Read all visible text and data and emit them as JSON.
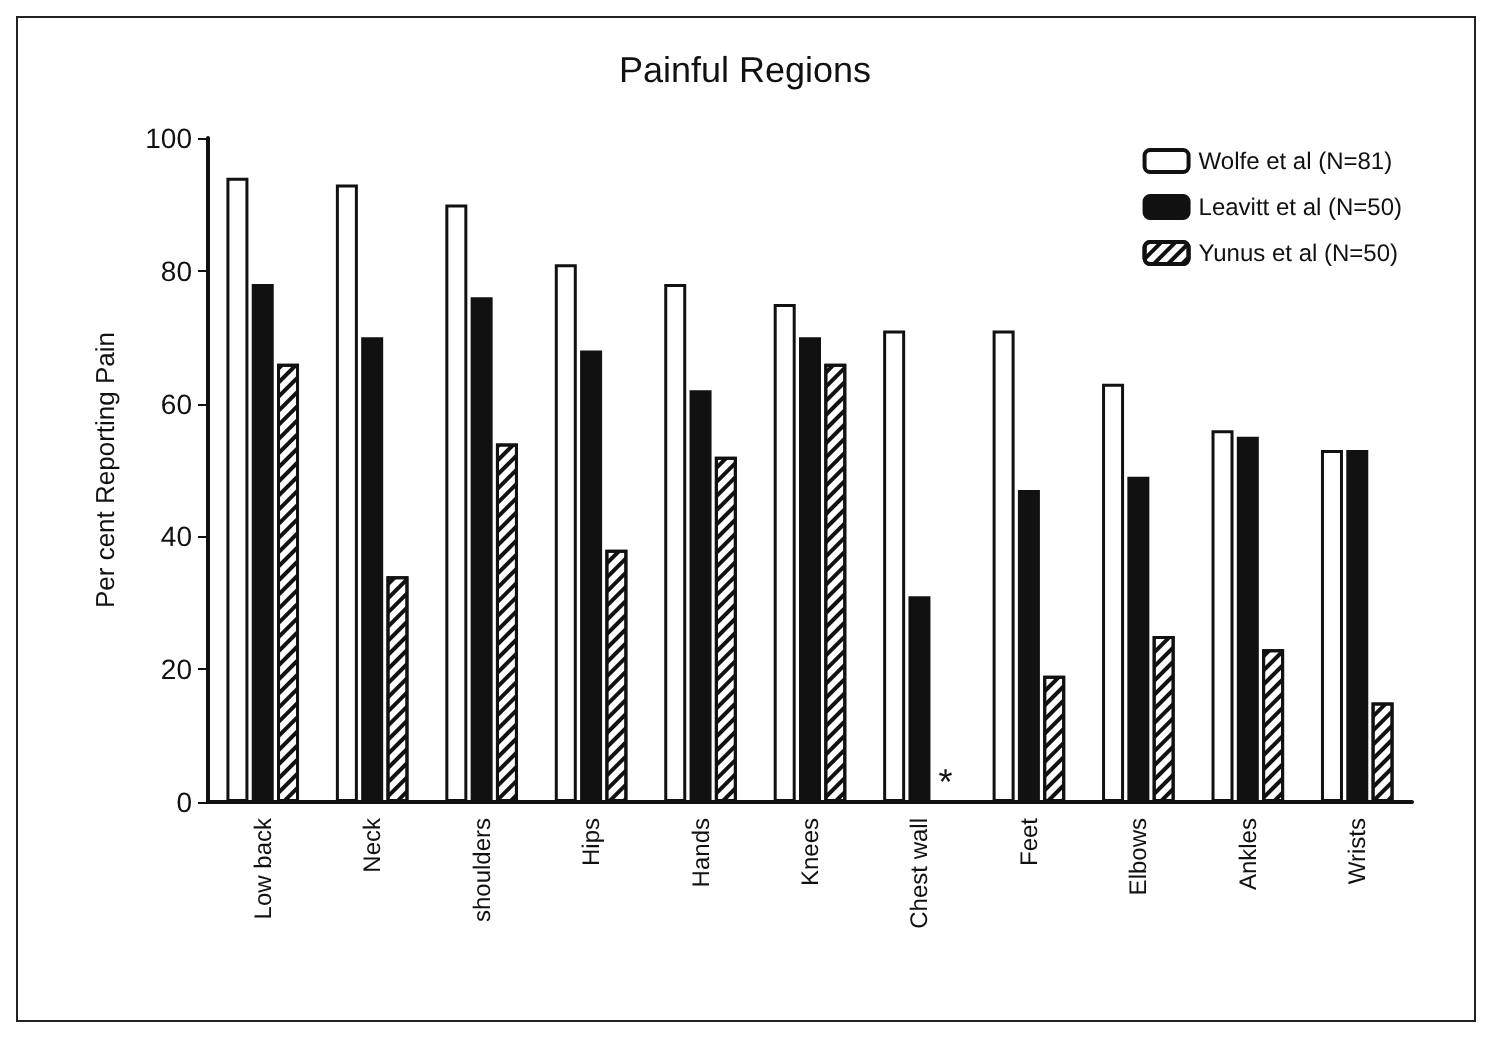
{
  "chart_data": {
    "type": "bar",
    "title": "Painful Regions",
    "ylabel": "Per cent Reporting Pain",
    "categories": [
      "Low back",
      "Neck",
      "shoulders",
      "Hips",
      "Hands",
      "Knees",
      "Chest wall",
      "Feet",
      "Elbows",
      "Ankles",
      "Wrists"
    ],
    "series": [
      {
        "name": "Wolfe et al (N=81)",
        "color": "#ffffff",
        "values": [
          94,
          93,
          90,
          81,
          78,
          75,
          71,
          71,
          63,
          56,
          53
        ]
      },
      {
        "name": "Leavitt et al (N=50)",
        "color": "#111111",
        "values": [
          78,
          70,
          76,
          68,
          62,
          70,
          31,
          47,
          49,
          55,
          53
        ]
      },
      {
        "name": "Yunus et al (N=50)",
        "color": "#ffffff",
        "values": [
          66,
          34,
          54,
          38,
          52,
          66,
          null,
          19,
          25,
          23,
          15
        ]
      }
    ],
    "ylim": [
      0,
      100
    ],
    "yticks": [
      0,
      20,
      40,
      60,
      80,
      100
    ],
    "grid": false,
    "legend": "top right",
    "annotations": [
      {
        "text": "*",
        "x": "Chest wall",
        "y": 3
      }
    ]
  }
}
